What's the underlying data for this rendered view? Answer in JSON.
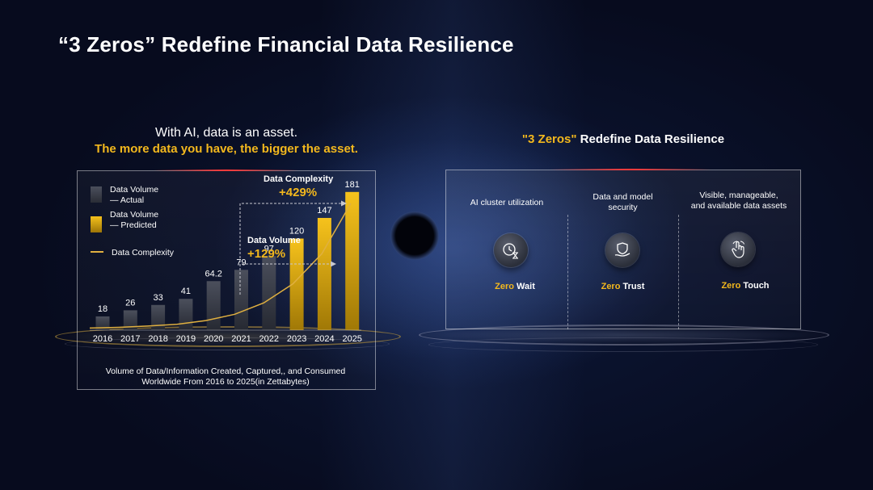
{
  "title": "“3 Zeros” Redefine Financial Data Resilience",
  "left": {
    "subtitle_line1": "With AI, data is an asset.",
    "subtitle_line2": "The more data you have, the bigger the asset.",
    "caption_line1": "Volume of Data/Information Created, Captured,, and Consumed",
    "caption_line2": "Worldwide From 2016 to 2025(in Zettabytes)"
  },
  "chart_data": {
    "type": "bar",
    "categories": [
      "2016",
      "2017",
      "2018",
      "2019",
      "2020",
      "2021",
      "2022",
      "2023",
      "2024",
      "2025"
    ],
    "series": [
      {
        "name": "Data Volume — Actual",
        "values": [
          18,
          26,
          33,
          41,
          64.2,
          79,
          97,
          null,
          null,
          null
        ],
        "color": "#3a3e4a"
      },
      {
        "name": "Data Volume — Predicted",
        "values": [
          null,
          null,
          null,
          null,
          null,
          null,
          null,
          120,
          147,
          181
        ],
        "color": "#f3b81d"
      }
    ],
    "value_labels": [
      "18",
      "26",
      "33",
      "41",
      "64.2",
      "79",
      "97",
      "120",
      "147",
      "181"
    ],
    "line": {
      "name": "Data Complexity",
      "color": "#e0b040",
      "values": [
        1,
        1.6,
        2.6,
        4,
        7,
        12,
        21,
        36,
        60,
        100
      ]
    },
    "legend": {
      "actual_line1": "Data Volume",
      "actual_line2": "— Actual",
      "predicted_line1": "Data Volume",
      "predicted_line2": "— Predicted",
      "complexity": "Data Complexity"
    },
    "annotations": {
      "complexity_label": "Data Complexity",
      "complexity_value": "+429%",
      "volume_label": "Data Volume",
      "volume_value": "+129%"
    },
    "ylim": [
      0,
      240
    ],
    "grid": false,
    "legend_placement": "top-left"
  },
  "right": {
    "subtitle_prefix": "\"3 Zeros\"",
    "subtitle_rest": " Redefine Data Resilience",
    "columns": [
      {
        "heading_line1": "AI cluster utilization",
        "heading_line2": "",
        "zero_prefix": "Zero",
        "zero_word": " Wait",
        "icon": "hourglass-clock-icon"
      },
      {
        "heading_line1": "Data and model",
        "heading_line2": "security",
        "zero_prefix": "Zero",
        "zero_word": " Trust",
        "icon": "shield-hand-icon"
      },
      {
        "heading_line1": "Visible, manageable,",
        "heading_line2": "and available data assets",
        "zero_prefix": "Zero",
        "zero_word": " Touch",
        "icon": "touch-hand-icon"
      }
    ]
  },
  "colors": {
    "accent": "#f3b81d",
    "background": "#070b1e",
    "actual_bar": "#3a3e4a"
  }
}
